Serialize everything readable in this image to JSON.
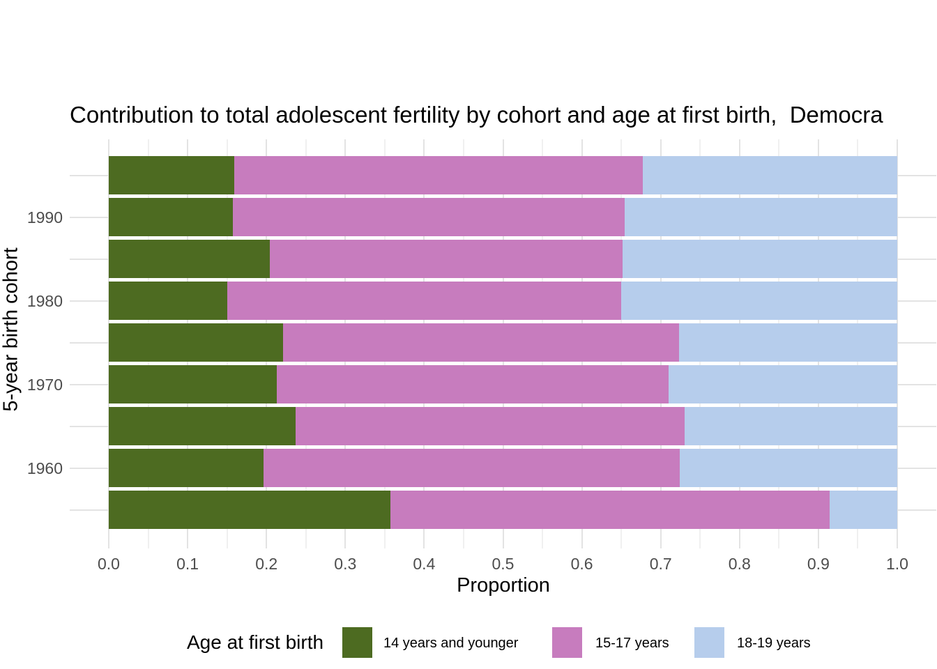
{
  "title": "Contribution to total adolescent fertility by cohort and age at first birth,  Democra",
  "axes": {
    "x_label": "Proportion",
    "y_label": "5-year birth cohort",
    "x_ticks": [
      "0.0",
      "0.1",
      "0.2",
      "0.3",
      "0.4",
      "0.5",
      "0.6",
      "0.7",
      "0.8",
      "0.9",
      "1.0"
    ],
    "y_tick_labels": [
      "1990",
      "1980",
      "1970",
      "1960"
    ]
  },
  "legend": {
    "title": "Age at first birth",
    "position": "bottom",
    "items": [
      {
        "label": "14 years and younger",
        "color": "#4D6B21"
      },
      {
        "label": "15-17 years",
        "color": "#C77CBE"
      },
      {
        "label": "18-19 years",
        "color": "#B6CDEC"
      }
    ]
  },
  "colors": {
    "background": "#ffffff",
    "grid_major": "#e3e3e3",
    "grid_minor": "#f0f0f0",
    "tick_text": "#4d4d4d",
    "title_text": "#000000"
  },
  "chart_data": {
    "type": "bar",
    "orientation": "horizontal",
    "stacked": true,
    "title": "Contribution to total adolescent fertility by cohort and age at first birth,  Democra",
    "xlabel": "Proportion",
    "ylabel": "5-year birth cohort",
    "xlim": [
      0,
      1
    ],
    "grid": true,
    "legend_position": "bottom",
    "categories_top_to_bottom": [
      "1995",
      "1990",
      "1985",
      "1980",
      "1975",
      "1970",
      "1965",
      "1960",
      "1955"
    ],
    "labeled_categories": [
      "1990",
      "1980",
      "1970",
      "1960"
    ],
    "series": [
      {
        "name": "14 years and younger",
        "color": "#4D6B21",
        "values": [
          0.159,
          0.157,
          0.204,
          0.15,
          0.221,
          0.213,
          0.237,
          0.196,
          0.357
        ]
      },
      {
        "name": "15-17 years",
        "color": "#C77CBE",
        "values": [
          0.518,
          0.497,
          0.448,
          0.5,
          0.502,
          0.497,
          0.493,
          0.528,
          0.557
        ]
      },
      {
        "name": "18-19 years",
        "color": "#B6CDEC",
        "values": [
          0.323,
          0.346,
          0.348,
          0.35,
          0.277,
          0.29,
          0.27,
          0.276,
          0.086
        ]
      }
    ]
  }
}
